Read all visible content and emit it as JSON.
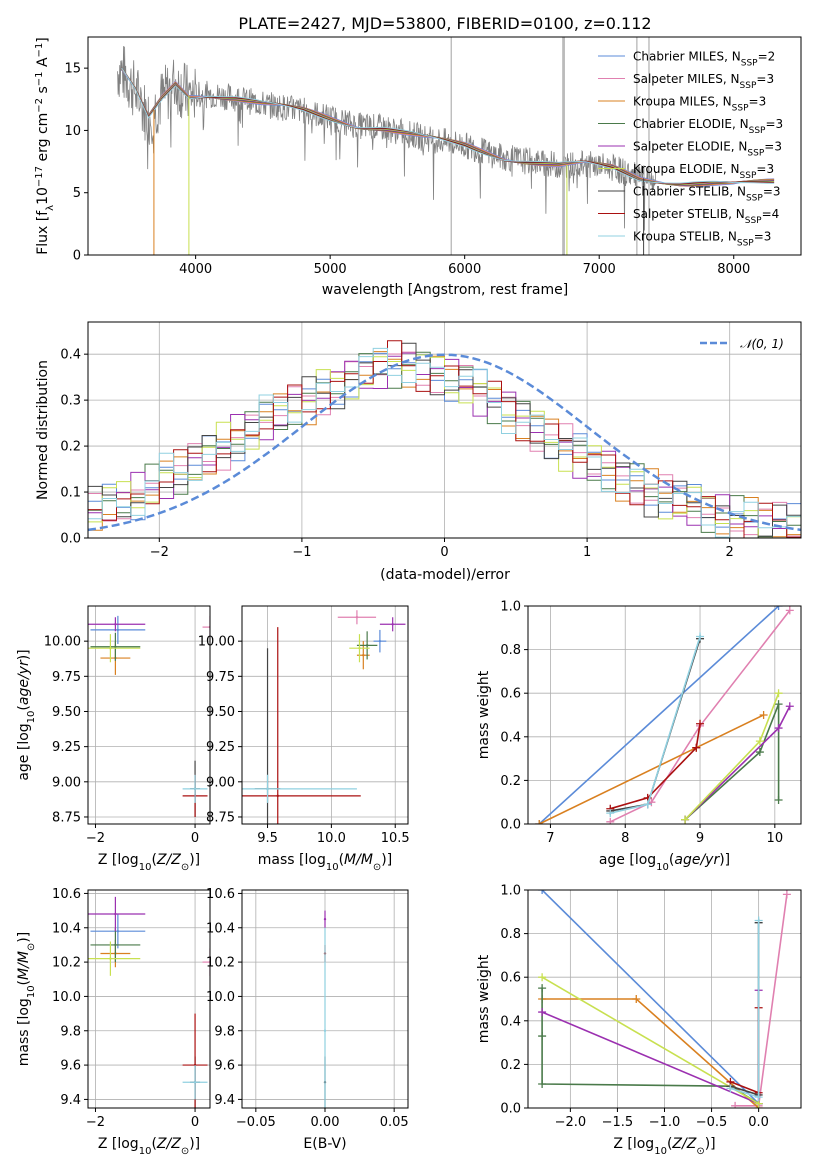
{
  "figure_title": "PLATE=2427, MJD=53800, FIBERID=0100, z=0.112",
  "colors": {
    "Chabrier MILES": "#5b8bd8",
    "Salpeter MILES": "#e080b0",
    "Kroupa MILES": "#d98020",
    "Chabrier ELODIE": "#4a7a4a",
    "Salpeter ELODIE": "#9b30b0",
    "Kroupa ELODIE": "#c8e050",
    "Chabrier STELIB": "#444444",
    "Salpeter STELIB": "#aa1010",
    "Kroupa STELIB": "#90d0e0",
    "data": "#808080",
    "gaussian": "#5b8bd8"
  },
  "chart_data": [
    {
      "id": "spectrum",
      "type": "line",
      "title": "PLATE=2427, MJD=53800, FIBERID=0100, z=0.112",
      "xlabel": "wavelength [Angstrom, rest frame]",
      "ylabel": "Flux [f$_\\lambda$10$^{-17}$ erg cm$^{-2}$ s$^{-1}$ A$^{-1}$]",
      "xlim": [
        3200,
        8500
      ],
      "ylim": [
        0,
        17.5
      ],
      "xticks": [
        4000,
        5000,
        6000,
        7000,
        8000
      ],
      "yticks": [
        0,
        5,
        10,
        15
      ],
      "legend": {
        "position": "top-right",
        "entries": [
          {
            "label": "Chabrier MILES, N",
            "sub": "SSP",
            "tail": "=2"
          },
          {
            "label": "Salpeter MILES, N",
            "sub": "SSP",
            "tail": "=3"
          },
          {
            "label": "Kroupa MILES, N",
            "sub": "SSP",
            "tail": "=3"
          },
          {
            "label": "Chabrier ELODIE, N",
            "sub": "SSP",
            "tail": "=3"
          },
          {
            "label": "Salpeter ELODIE, N",
            "sub": "SSP",
            "tail": "=3"
          },
          {
            "label": "Kroupa ELODIE, N",
            "sub": "SSP",
            "tail": "=3"
          },
          {
            "label": "Chabrier STELIB, N",
            "sub": "SSP",
            "tail": "=3"
          },
          {
            "label": "Salpeter STELIB, N",
            "sub": "SSP",
            "tail": "=4"
          },
          {
            "label": "Kroupa STELIB, N",
            "sub": "SSP",
            "tail": "=3"
          }
        ]
      },
      "continuum": {
        "x": [
          3450,
          3550,
          3650,
          3750,
          3850,
          3950,
          4100,
          4300,
          4500,
          4800,
          5000,
          5200,
          5400,
          5700,
          6000,
          6300,
          6500,
          6700,
          6900,
          7100,
          7300,
          7600,
          8000,
          8300
        ],
        "y": [
          14.8,
          13.2,
          11.0,
          12.6,
          13.8,
          12.8,
          12.9,
          12.6,
          12.1,
          11.6,
          11.0,
          10.4,
          10.2,
          9.4,
          8.8,
          7.8,
          7.5,
          7.2,
          7.3,
          7.0,
          6.2,
          5.8,
          5.6,
          5.9
        ]
      }
    },
    {
      "id": "residuals",
      "type": "histogram",
      "xlabel": "(data-model)/error",
      "ylabel": "Normed distribution",
      "xlim": [
        -2.5,
        2.5
      ],
      "ylim": [
        0,
        0.47
      ],
      "xticks": [
        -2,
        -1,
        0,
        1,
        2
      ],
      "yticks": [
        0.0,
        0.1,
        0.2,
        0.3,
        0.4
      ],
      "legend_label": "$\\mathcal{N}(0,1)$",
      "bin_width": 0.1,
      "bins_start": -2.5,
      "series_values": [
        0.06,
        0.07,
        0.08,
        0.09,
        0.11,
        0.13,
        0.14,
        0.16,
        0.18,
        0.2,
        0.22,
        0.24,
        0.26,
        0.27,
        0.29,
        0.3,
        0.32,
        0.33,
        0.35,
        0.36,
        0.37,
        0.38,
        0.38,
        0.37,
        0.36,
        0.35,
        0.34,
        0.32,
        0.3,
        0.28,
        0.26,
        0.24,
        0.22,
        0.2,
        0.18,
        0.16,
        0.15,
        0.13,
        0.12,
        0.1,
        0.09,
        0.08,
        0.07,
        0.06,
        0.05,
        0.04,
        0.04,
        0.03,
        0.03,
        0.02
      ]
    },
    {
      "id": "age-vs-Z",
      "type": "scatter",
      "xlabel": "Z [log$_{10}$(Z/Z$_\\odot$)]",
      "ylabel": "age  [log$_{10}$(age/yr)]",
      "xlim": [
        -2.15,
        0.3
      ],
      "ylim": [
        8.7,
        10.25
      ],
      "xticks": [
        -2,
        0
      ],
      "yticks": [
        8.75,
        9.0,
        9.25,
        9.5,
        9.75,
        10.0
      ],
      "points": [
        {
          "series": "Chabrier MILES",
          "x": -1.55,
          "y": 10.08,
          "xerr": 0.55,
          "yerr": 0.1
        },
        {
          "series": "Salpeter MILES",
          "x": 0.3,
          "y": 10.1,
          "xerr": 0.15,
          "yerr": 0.08
        },
        {
          "series": "Kroupa MILES",
          "x": -1.6,
          "y": 9.88,
          "xerr": 0.3,
          "yerr": 0.12
        },
        {
          "series": "Chabrier ELODIE",
          "x": -1.6,
          "y": 9.96,
          "xerr": 0.5,
          "yerr": 0.1
        },
        {
          "series": "Salpeter ELODIE",
          "x": -1.6,
          "y": 10.12,
          "xerr": 0.6,
          "yerr": 0.05
        },
        {
          "series": "Kroupa ELODIE",
          "x": -1.7,
          "y": 9.95,
          "xerr": 0.6,
          "yerr": 0.1
        },
        {
          "series": "Chabrier STELIB",
          "x": 0.0,
          "y": 8.95,
          "xerr": 0.1,
          "yerr": 0.2
        },
        {
          "series": "Salpeter STELIB",
          "x": 0.0,
          "y": 8.9,
          "xerr": 0.25,
          "yerr": 0.15
        },
        {
          "series": "Kroupa STELIB",
          "x": 0.0,
          "y": 8.95,
          "xerr": 0.25,
          "yerr": 0.1
        }
      ]
    },
    {
      "id": "age-vs-mass",
      "type": "scatter",
      "xlabel": "mass [log$_{10}$(M/M$_\\odot$)]",
      "ylabel": "",
      "xlim": [
        9.3,
        10.6
      ],
      "ylim": [
        8.7,
        10.25
      ],
      "xticks": [
        9.5,
        10.0,
        10.5
      ],
      "yticks": [
        8.75,
        9.0,
        9.25,
        9.5,
        9.75,
        10.0
      ],
      "points": [
        {
          "series": "Chabrier MILES",
          "x": 10.38,
          "y": 10.0,
          "xerr": 0.05,
          "yerr": 0.08
        },
        {
          "series": "Salpeter MILES",
          "x": 10.2,
          "y": 10.17,
          "xerr": 0.15,
          "yerr": 0.05
        },
        {
          "series": "Kroupa MILES",
          "x": 10.25,
          "y": 9.9,
          "xerr": 0.05,
          "yerr": 0.1
        },
        {
          "series": "Chabrier ELODIE",
          "x": 10.28,
          "y": 9.97,
          "xerr": 0.08,
          "yerr": 0.1
        },
        {
          "series": "Salpeter ELODIE",
          "x": 10.48,
          "y": 10.12,
          "xerr": 0.1,
          "yerr": 0.05
        },
        {
          "series": "Kroupa ELODIE",
          "x": 10.22,
          "y": 9.95,
          "xerr": 0.08,
          "yerr": 0.1
        },
        {
          "series": "Chabrier STELIB",
          "x": 9.5,
          "y": 8.95,
          "xerr": 0.1,
          "yerr": 1.0
        },
        {
          "series": "Salpeter STELIB",
          "x": 9.58,
          "y": 8.9,
          "xerr": 0.65,
          "yerr": 1.2
        },
        {
          "series": "Kroupa STELIB",
          "x": 9.5,
          "y": 8.95,
          "xerr": 0.7,
          "yerr": 0.1
        }
      ]
    },
    {
      "id": "weight-vs-age",
      "type": "line",
      "xlabel": "age  [log$_{10}$(age/yr)]",
      "ylabel": "mass weight",
      "xlim": [
        6.7,
        10.35
      ],
      "ylim": [
        0.0,
        1.0
      ],
      "xticks": [
        7,
        8,
        9,
        10
      ],
      "yticks": [
        0.0,
        0.2,
        0.4,
        0.6,
        0.8,
        1.0
      ],
      "series": [
        {
          "name": "Chabrier MILES",
          "x": [
            6.85,
            10.05
          ],
          "y": [
            0.0,
            1.0
          ]
        },
        {
          "name": "Salpeter MILES",
          "x": [
            7.8,
            8.35,
            9.0,
            10.2
          ],
          "y": [
            0.01,
            0.1,
            0.45,
            0.98
          ]
        },
        {
          "name": "Kroupa MILES",
          "x": [
            6.85,
            8.95,
            9.85
          ],
          "y": [
            0.0,
            0.35,
            0.5
          ]
        },
        {
          "name": "Chabrier ELODIE",
          "x": [
            8.8,
            9.8,
            10.05,
            10.05
          ],
          "y": [
            0.02,
            0.33,
            0.55,
            0.11
          ]
        },
        {
          "name": "Salpeter ELODIE",
          "x": [
            8.8,
            10.05,
            10.2
          ],
          "y": [
            0.02,
            0.44,
            0.54
          ]
        },
        {
          "name": "Kroupa ELODIE",
          "x": [
            8.8,
            9.8,
            10.05
          ],
          "y": [
            0.02,
            0.38,
            0.6
          ]
        },
        {
          "name": "Chabrier STELIB",
          "x": [
            7.8,
            8.3,
            9.0
          ],
          "y": [
            0.06,
            0.09,
            0.85
          ]
        },
        {
          "name": "Salpeter STELIB",
          "x": [
            7.8,
            8.3,
            8.95,
            9.0
          ],
          "y": [
            0.07,
            0.12,
            0.35,
            0.46
          ]
        },
        {
          "name": "Kroupa STELIB",
          "x": [
            7.8,
            8.3,
            9.0
          ],
          "y": [
            0.05,
            0.09,
            0.86
          ]
        }
      ]
    },
    {
      "id": "mass-vs-Z",
      "type": "scatter",
      "xlabel": "Z [log$_{10}$(Z/Z$_\\odot$)]",
      "ylabel": "mass [log$_{10}$(M/M$_\\odot$)]",
      "xlim": [
        -2.15,
        0.3
      ],
      "ylim": [
        9.35,
        10.62
      ],
      "xticks": [
        -2,
        0
      ],
      "yticks": [
        9.4,
        9.6,
        9.8,
        10.0,
        10.2,
        10.4,
        10.6
      ],
      "points": [
        {
          "series": "Chabrier MILES",
          "x": -1.55,
          "y": 10.38,
          "xerr": 0.55,
          "yerr": 0.1
        },
        {
          "series": "Salpeter MILES",
          "x": 0.3,
          "y": 10.2,
          "xerr": 0.15,
          "yerr": 0.08
        },
        {
          "series": "Kroupa MILES",
          "x": -1.6,
          "y": 10.25,
          "xerr": 0.3,
          "yerr": 0.08
        },
        {
          "series": "Chabrier ELODIE",
          "x": -1.6,
          "y": 10.3,
          "xerr": 0.5,
          "yerr": 0.1
        },
        {
          "series": "Salpeter ELODIE",
          "x": -1.6,
          "y": 10.48,
          "xerr": 0.6,
          "yerr": 0.1
        },
        {
          "series": "Kroupa ELODIE",
          "x": -1.7,
          "y": 10.22,
          "xerr": 0.6,
          "yerr": 0.1
        },
        {
          "series": "Chabrier STELIB",
          "x": 0.0,
          "y": 9.5,
          "xerr": 0.1,
          "yerr": 0.15
        },
        {
          "series": "Salpeter STELIB",
          "x": 0.0,
          "y": 9.6,
          "xerr": 0.25,
          "yerr": 0.3
        },
        {
          "series": "Kroupa STELIB",
          "x": 0.0,
          "y": 9.5,
          "xerr": 0.25,
          "yerr": 0.1
        }
      ]
    },
    {
      "id": "mass-vs-ebv",
      "type": "scatter",
      "xlabel": "E(B-V)",
      "ylabel": "",
      "xlim": [
        -0.06,
        0.06
      ],
      "ylim": [
        9.35,
        10.62
      ],
      "xticks": [
        -0.05,
        0.0,
        0.05
      ],
      "yticks": [
        9.4,
        9.6,
        9.8,
        10.0,
        10.2,
        10.4,
        10.6
      ],
      "points": [
        {
          "series": "Salpeter ELODIE",
          "x": 0.0,
          "y": 10.45,
          "yerr": 0.05
        },
        {
          "series": "Salpeter STELIB",
          "x": 0.0,
          "y": 10.25,
          "yerr": 0.05
        },
        {
          "series": "Chabrier STELIB",
          "x": 0.0,
          "y": 9.5,
          "yerr": 0.15
        },
        {
          "series": "Kroupa STELIB",
          "x": 0.0,
          "y": 9.8,
          "yerr": 0.6
        }
      ]
    },
    {
      "id": "weight-vs-Z",
      "type": "line",
      "xlabel": "Z [log$_{10}$(Z/Z$_\\odot$)]",
      "ylabel": "mass weight",
      "xlim": [
        -2.45,
        0.45
      ],
      "ylim": [
        0.0,
        1.0
      ],
      "xticks": [
        -2.0,
        -1.5,
        -1.0,
        -0.5,
        0.0
      ],
      "yticks": [
        0.0,
        0.2,
        0.4,
        0.6,
        0.8,
        1.0
      ],
      "series": [
        {
          "name": "Chabrier MILES",
          "x": [
            -2.3,
            0.0
          ],
          "y": [
            1.0,
            0.02
          ]
        },
        {
          "name": "Salpeter MILES",
          "x": [
            -0.25,
            0.0,
            0.3
          ],
          "y": [
            0.01,
            0.01,
            0.98
          ]
        },
        {
          "name": "Kroupa MILES",
          "x": [
            -2.3,
            -1.3,
            0.0
          ],
          "y": [
            0.5,
            0.5,
            0.0
          ]
        },
        {
          "name": "Chabrier ELODIE",
          "x": [
            -2.3,
            -2.3,
            -2.3,
            -0.3,
            0.0
          ],
          "y": [
            0.55,
            0.33,
            0.11,
            0.1,
            0.02
          ]
        },
        {
          "name": "Salpeter ELODIE",
          "x": [
            -2.3,
            0.0,
            0.0
          ],
          "y": [
            0.44,
            0.02,
            0.54
          ]
        },
        {
          "name": "Kroupa ELODIE",
          "x": [
            -2.3,
            0.0
          ],
          "y": [
            0.6,
            0.02
          ]
        },
        {
          "name": "Chabrier STELIB",
          "x": [
            -0.3,
            0.0,
            0.0
          ],
          "y": [
            0.1,
            0.06,
            0.85
          ]
        },
        {
          "name": "Salpeter STELIB",
          "x": [
            -0.3,
            0.0,
            0.0
          ],
          "y": [
            0.12,
            0.07,
            0.46
          ]
        },
        {
          "name": "Kroupa STELIB",
          "x": [
            -0.3,
            0.0,
            0.0
          ],
          "y": [
            0.09,
            0.05,
            0.86
          ]
        }
      ]
    }
  ]
}
